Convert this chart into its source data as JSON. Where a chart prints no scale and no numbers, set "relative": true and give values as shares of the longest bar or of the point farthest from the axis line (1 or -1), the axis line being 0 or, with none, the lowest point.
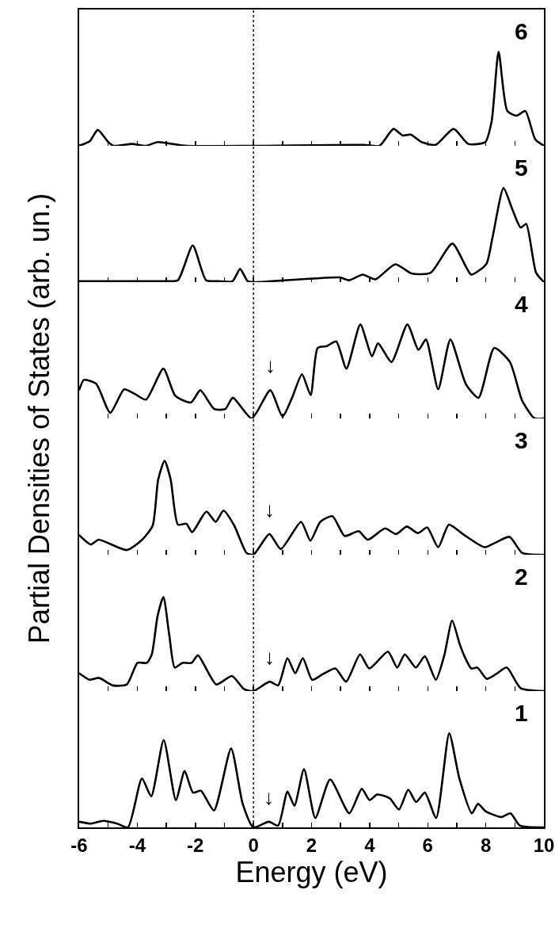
{
  "chart_data": [
    {
      "type": "line",
      "relative": true,
      "ylabel": "Partial Densities of States (arb. un.)",
      "xlim": [
        -6,
        10
      ],
      "xticks": [
        -6,
        {
          "value": -5,
          "label": null
        },
        -4,
        {
          "value": -3,
          "label": null
        },
        -2,
        {
          "value": -1,
          "label": null
        },
        0,
        {
          "value": 1,
          "label": null
        },
        2,
        {
          "value": 3,
          "label": null
        },
        4,
        {
          "value": 5,
          "label": null
        },
        6,
        {
          "value": 7,
          "label": null
        },
        8,
        {
          "value": 9,
          "label": null
        },
        10
      ],
      "tick_labels": false,
      "ref_lines": [
        {
          "axis": "x",
          "value": 0,
          "line_style": "dotted",
          "color": "#000000"
        }
      ],
      "annotations": [
        "6"
      ],
      "x": [
        -6,
        -5.63,
        -5.36,
        -5.0,
        -4.82,
        -4.18,
        -3.7,
        -3.3,
        -2.79,
        -2.3,
        0,
        3.8,
        4.34,
        4.82,
        5.14,
        5.41,
        5.79,
        6.27,
        6.89,
        7.4,
        7.98,
        8.2,
        8.44,
        8.74,
        9.06,
        9.36,
        9.7,
        10
      ],
      "series": [
        {
          "color": "#000000",
          "values": [
            0,
            0.05,
            0.17,
            0.04,
            0,
            0.02,
            0,
            0.04,
            0.02,
            0,
            0,
            0.01,
            0,
            0.18,
            0.11,
            0.12,
            0.04,
            0.01,
            0.18,
            0.02,
            0.04,
            0.26,
            1,
            0.37,
            0.32,
            0.37,
            0.07,
            0
          ]
        }
      ]
    },
    {
      "type": "line",
      "relative": true,
      "xlim": [
        -6,
        10
      ],
      "xticks": [
        -6,
        {
          "value": -5,
          "label": null
        },
        -4,
        {
          "value": -3,
          "label": null
        },
        -2,
        {
          "value": -1,
          "label": null
        },
        0,
        {
          "value": 1,
          "label": null
        },
        2,
        {
          "value": 3,
          "label": null
        },
        4,
        {
          "value": 5,
          "label": null
        },
        6,
        {
          "value": 7,
          "label": null
        },
        8,
        {
          "value": 9,
          "label": null
        },
        10
      ],
      "tick_labels": false,
      "ref_lines": [
        {
          "axis": "x",
          "value": 0,
          "line_style": "dotted",
          "color": "#000000"
        }
      ],
      "annotations": [
        "5"
      ],
      "x": [
        -6,
        -4,
        -3,
        -2.6,
        -2.09,
        -1.63,
        -1.2,
        -0.72,
        -0.46,
        -0.2,
        0,
        2.96,
        3.3,
        3.76,
        4.2,
        4.88,
        5.46,
        6.1,
        6.85,
        7.49,
        7.75,
        8.03,
        8.24,
        8.61,
        8.93,
        9.2,
        9.39,
        9.73,
        10
      ],
      "series": [
        {
          "color": "#000000",
          "values": [
            0.01,
            0.01,
            0.01,
            0.02,
            0.39,
            0.02,
            0.01,
            0.01,
            0.14,
            0.01,
            0,
            0.05,
            0.02,
            0.08,
            0.03,
            0.19,
            0.09,
            0.1,
            0.41,
            0.08,
            0.12,
            0.2,
            0.49,
            1,
            0.76,
            0.58,
            0.62,
            0.1,
            0
          ]
        }
      ]
    },
    {
      "type": "line",
      "relative": true,
      "xlim": [
        -6,
        10
      ],
      "xticks": [
        -6,
        {
          "value": -5,
          "label": null
        },
        -4,
        {
          "value": -3,
          "label": null
        },
        -2,
        {
          "value": -1,
          "label": null
        },
        0,
        {
          "value": 1,
          "label": null
        },
        2,
        {
          "value": 3,
          "label": null
        },
        4,
        {
          "value": 5,
          "label": null
        },
        6,
        {
          "value": 7,
          "label": null
        },
        8,
        {
          "value": 9,
          "label": null
        },
        10
      ],
      "tick_labels": false,
      "ref_lines": [
        {
          "axis": "x",
          "value": 0,
          "line_style": "dotted",
          "color": "#000000"
        }
      ],
      "annotations": [
        "4",
        {
          "text": "↓",
          "x": 0.58,
          "y": 0.3
        }
      ],
      "x": [
        -6,
        -5.84,
        -5.42,
        -4.93,
        -4.45,
        -4.08,
        -3.7,
        -3.1,
        -2.69,
        -2.15,
        -1.83,
        -1.35,
        -0.97,
        -0.71,
        -0.06,
        0.58,
        1.0,
        1.33,
        1.67,
        1.97,
        2.21,
        2.53,
        2.85,
        3.2,
        3.68,
        4.08,
        4.29,
        4.75,
        5.3,
        5.68,
        5.94,
        6.36,
        6.78,
        7.32,
        7.75,
        8.29,
        8.83,
        9.25,
        9.68,
        10
      ],
      "series": [
        {
          "color": "#000000",
          "values": [
            0.3,
            0.41,
            0.37,
            0.06,
            0.31,
            0.26,
            0.2,
            0.53,
            0.24,
            0.17,
            0.3,
            0.1,
            0.1,
            0.22,
            0,
            0.3,
            0.02,
            0.22,
            0.47,
            0.25,
            0.75,
            0.77,
            0.82,
            0.53,
            1,
            0.66,
            0.8,
            0.6,
            1,
            0.73,
            0.84,
            0.31,
            0.84,
            0.36,
            0.22,
            0.75,
            0.6,
            0.19,
            0,
            0
          ]
        }
      ]
    },
    {
      "type": "line",
      "relative": true,
      "xlim": [
        -6,
        10
      ],
      "xticks": [
        -6,
        {
          "value": -5,
          "label": null
        },
        -4,
        {
          "value": -3,
          "label": null
        },
        -2,
        {
          "value": -1,
          "label": null
        },
        0,
        {
          "value": 1,
          "label": null
        },
        2,
        {
          "value": 3,
          "label": null
        },
        4,
        {
          "value": 5,
          "label": null
        },
        6,
        {
          "value": 7,
          "label": null
        },
        8,
        {
          "value": 9,
          "label": null
        },
        10
      ],
      "tick_labels": false,
      "ref_lines": [
        {
          "axis": "x",
          "value": 0,
          "line_style": "dotted",
          "color": "#000000"
        }
      ],
      "annotations": [
        "3",
        {
          "text": "↓",
          "x": 0.55,
          "y": 0.22
        }
      ],
      "x": [
        -6,
        -5.6,
        -5.33,
        -4.36,
        -3.83,
        -3.47,
        -3.28,
        -3.06,
        -2.85,
        -2.6,
        -2.31,
        -2.11,
        -1.62,
        -1.3,
        -1.03,
        -0.66,
        -0.24,
        0,
        0.55,
        0.94,
        1.64,
        1.96,
        2.3,
        2.72,
        3.14,
        3.62,
        3.94,
        4.53,
        4.91,
        5.28,
        5.66,
        5.98,
        6.36,
        6.73,
        7.21,
        7.96,
        8.34,
        8.82,
        9.25,
        10
      ],
      "series": [
        {
          "color": "#000000",
          "values": [
            0.21,
            0.11,
            0.16,
            0.05,
            0.16,
            0.31,
            0.8,
            1,
            0.8,
            0.32,
            0.33,
            0.24,
            0.46,
            0.35,
            0.47,
            0.31,
            0.02,
            0,
            0.22,
            0.06,
            0.35,
            0.15,
            0.35,
            0.41,
            0.2,
            0.25,
            0.16,
            0.28,
            0.22,
            0.3,
            0.23,
            0.29,
            0.08,
            0.32,
            0.22,
            0.08,
            0.13,
            0.19,
            0.02,
            0
          ]
        }
      ]
    },
    {
      "type": "line",
      "relative": true,
      "xlim": [
        -6,
        10
      ],
      "xticks": [
        -6,
        {
          "value": -5,
          "label": null
        },
        -4,
        {
          "value": -3,
          "label": null
        },
        -2,
        {
          "value": -1,
          "label": null
        },
        0,
        {
          "value": 1,
          "label": null
        },
        2,
        {
          "value": 3,
          "label": null
        },
        4,
        {
          "value": 5,
          "label": null
        },
        6,
        {
          "value": 7,
          "label": null
        },
        8,
        {
          "value": 9,
          "label": null
        },
        10
      ],
      "tick_labels": false,
      "ref_lines": [
        {
          "axis": "x",
          "value": 0,
          "line_style": "dotted",
          "color": "#000000"
        }
      ],
      "annotations": [
        "2",
        {
          "text": "↓",
          "x": 0.56,
          "y": 0.1
        }
      ],
      "x": [
        -6,
        -5.64,
        -5.32,
        -4.84,
        -4.36,
        -3.99,
        -3.67,
        -3.5,
        -3.3,
        -3.1,
        -2.9,
        -2.71,
        -2.45,
        -2.13,
        -1.91,
        -1.28,
        -0.74,
        -0.32,
        0,
        0.56,
        0.85,
        1.17,
        1.44,
        1.7,
        2.02,
        2.39,
        2.82,
        3.19,
        3.67,
        3.99,
        4.63,
        4.95,
        5.21,
        5.59,
        5.9,
        6.28,
        6.57,
        6.84,
        7.1,
        7.25,
        7.5,
        7.71,
        8.03,
        8.35,
        8.72,
        9.2,
        10
      ],
      "series": [
        {
          "color": "#000000",
          "values": [
            0.19,
            0.12,
            0.14,
            0.06,
            0.07,
            0.3,
            0.3,
            0.39,
            0.8,
            1,
            0.6,
            0.25,
            0.3,
            0.3,
            0.38,
            0.07,
            0.16,
            0.02,
            0,
            0.1,
            0.06,
            0.35,
            0.19,
            0.35,
            0.12,
            0.18,
            0.24,
            0.1,
            0.39,
            0.24,
            0.42,
            0.25,
            0.39,
            0.25,
            0.37,
            0.12,
            0.38,
            0.75,
            0.5,
            0.38,
            0.24,
            0.25,
            0.13,
            0.18,
            0.25,
            0.03,
            0
          ]
        }
      ]
    },
    {
      "type": "line",
      "relative": true,
      "xlabel": "Energy (eV)",
      "xlim": [
        -6,
        10
      ],
      "xticks": [
        -6,
        {
          "value": -5,
          "label": null
        },
        -4,
        {
          "value": -3,
          "label": null
        },
        -2,
        {
          "value": -1,
          "label": null
        },
        0,
        {
          "value": 1,
          "label": null
        },
        2,
        {
          "value": 3,
          "label": null
        },
        4,
        {
          "value": 5,
          "label": null
        },
        6,
        {
          "value": 7,
          "label": null
        },
        8,
        {
          "value": 9,
          "label": null
        },
        10
      ],
      "tick_labels": "x",
      "ref_lines": [
        {
          "axis": "x",
          "value": 0,
          "line_style": "dotted",
          "color": "#000000"
        }
      ],
      "annotations": [
        "1",
        {
          "text": "↓",
          "x": 0.53,
          "y": 0.06
        }
      ],
      "x": [
        -6,
        -5.6,
        -5.17,
        -4.69,
        -4.32,
        -3.84,
        -3.52,
        -3.09,
        -2.67,
        -2.37,
        -2.08,
        -1.81,
        -1.36,
        -0.77,
        -0.37,
        0,
        0.53,
        0.85,
        1.17,
        1.41,
        1.74,
        2.13,
        2.64,
        3.3,
        3.73,
        4.0,
        4.26,
        4.69,
        5.01,
        5.33,
        5.6,
        5.9,
        6.29,
        6.74,
        7.09,
        7.52,
        7.73,
        8.0,
        8.53,
        8.85,
        9.17,
        10
      ],
      "series": [
        {
          "color": "#000000",
          "values": [
            0.06,
            0.04,
            0.07,
            0.04,
            0,
            0.52,
            0.33,
            0.93,
            0.29,
            0.6,
            0.37,
            0.39,
            0.18,
            0.84,
            0.25,
            0,
            0.06,
            0.02,
            0.38,
            0.23,
            0.62,
            0.1,
            0.51,
            0.15,
            0.41,
            0.29,
            0.35,
            0.31,
            0.19,
            0.4,
            0.27,
            0.37,
            0.1,
            1,
            0.52,
            0.15,
            0.25,
            0.17,
            0.11,
            0.15,
            0.02,
            0
          ]
        }
      ]
    }
  ]
}
